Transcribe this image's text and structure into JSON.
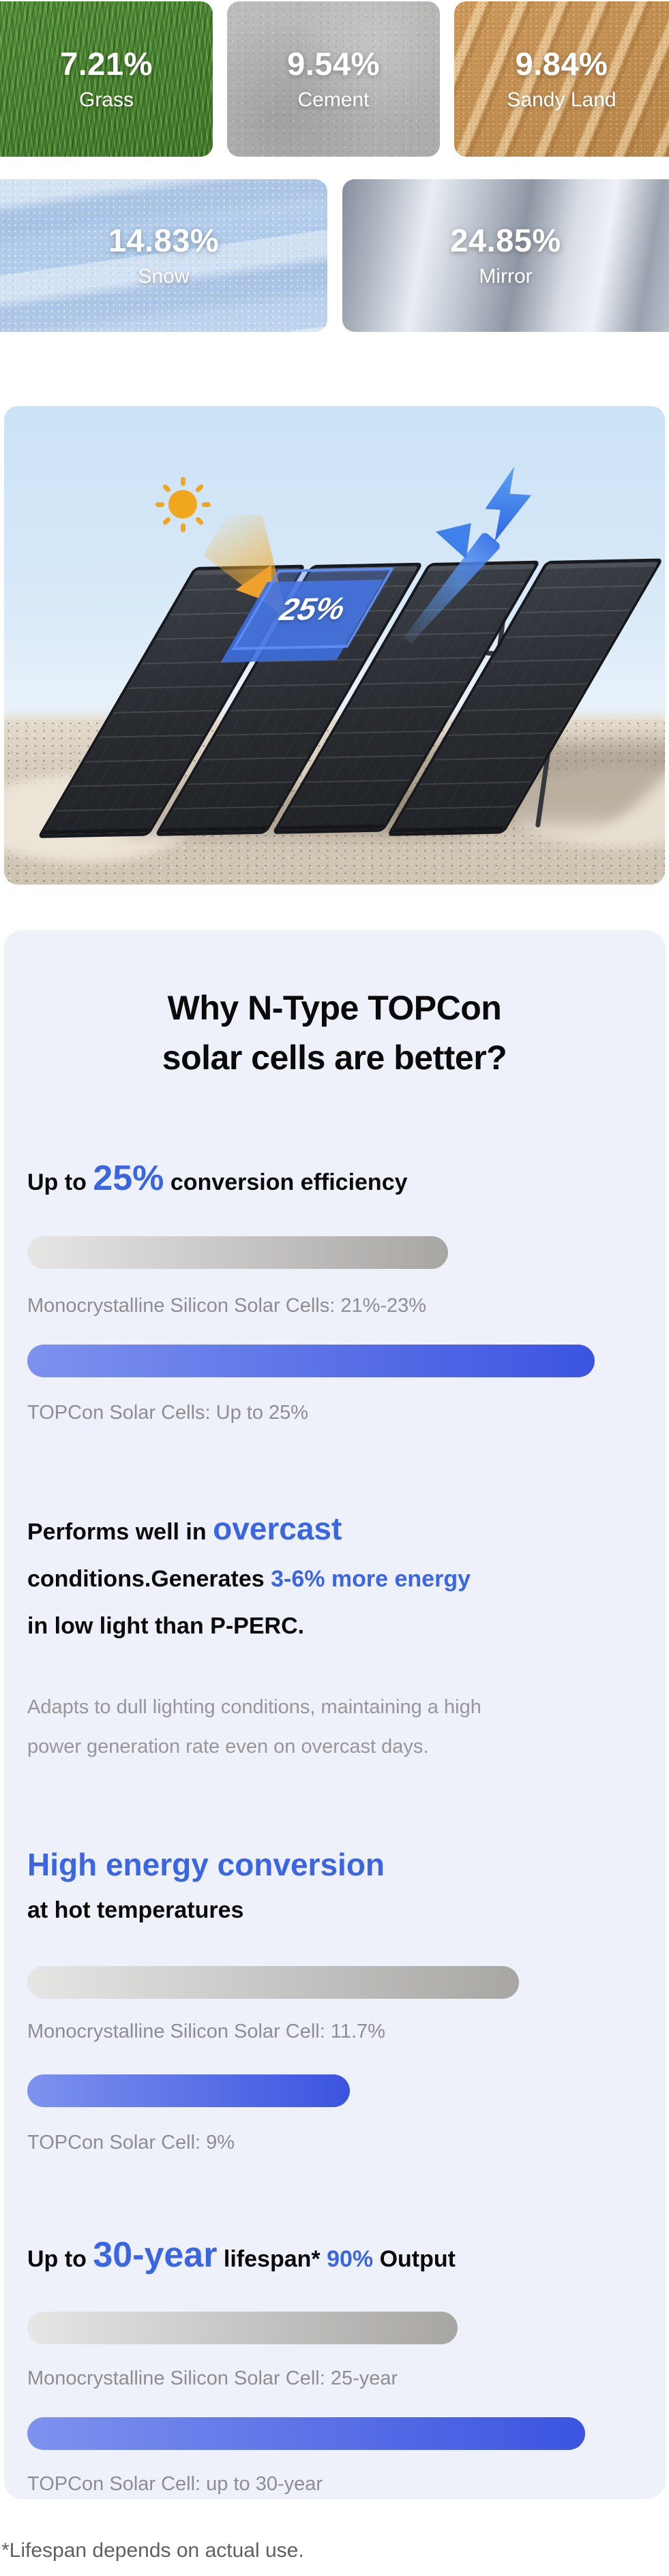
{
  "tiles": [
    {
      "value": "7.21%",
      "label": "Grass"
    },
    {
      "value": "9.54%",
      "label": "Cement"
    },
    {
      "value": "9.84%",
      "label": "Sandy Land"
    },
    {
      "value": "14.83%",
      "label": "Snow"
    },
    {
      "value": "24.85%",
      "label": "Mirror"
    }
  ],
  "hero": {
    "badge": "25%"
  },
  "card": {
    "title1": "Why N-Type TOPCon",
    "title2": "solar cells are better?",
    "efficiency": {
      "h1": "Up to ",
      "h2": "25%",
      "h3": " conversion efficiency"
    },
    "overcast": {
      "l1a": "Performs well in ",
      "l1b": "overcast",
      "l2a": "conditions.Generates ",
      "l2b": "3-6% more energy",
      "l3": "in low light than P-PERC.",
      "desc1": "Adapts to dull lighting conditions, maintaining a high",
      "desc2": "power generation rate even on overcast days."
    },
    "thermal": {
      "h1": "High energy conversion",
      "h2": "at hot temperatures"
    },
    "lifespan": {
      "h1": "Up to ",
      "h2": "30-year",
      "h3": " lifespan* ",
      "h4": "90%",
      "h5": " Output"
    }
  },
  "bars": {
    "efficiency": [
      {
        "label": "Monocrystalline Silicon Solar Cells: 21%-23%",
        "width_pct": 68.5,
        "type": "gray"
      },
      {
        "label": "TOPCon Solar Cells: Up to 25%",
        "width_pct": 92.3,
        "type": "blue"
      }
    ],
    "thermal": [
      {
        "label": "Monocrystalline Silicon Solar Cell: 11.7%",
        "width_pct": 80.0,
        "type": "gray"
      },
      {
        "label": "TOPCon Solar Cell: 9%",
        "width_pct": 52.5,
        "type": "blue"
      }
    ],
    "lifespan": [
      {
        "label": "Monocrystalline Silicon Solar Cell: 25-year",
        "width_pct": 70.0,
        "type": "gray"
      },
      {
        "label": "TOPCon Solar Cell: up to 30-year",
        "width_pct": 90.8,
        "type": "blue"
      }
    ]
  },
  "footnote": "*Lifespan depends on actual use.",
  "colors": {
    "accent_blue": "#3b66e2",
    "bar_blue_start": "#7d92ee",
    "bar_blue_end": "#3b54e0",
    "bar_gray_start": "#e6e6e5",
    "bar_gray_end": "#a7a6a3",
    "card_bg": "#eef1f9"
  }
}
